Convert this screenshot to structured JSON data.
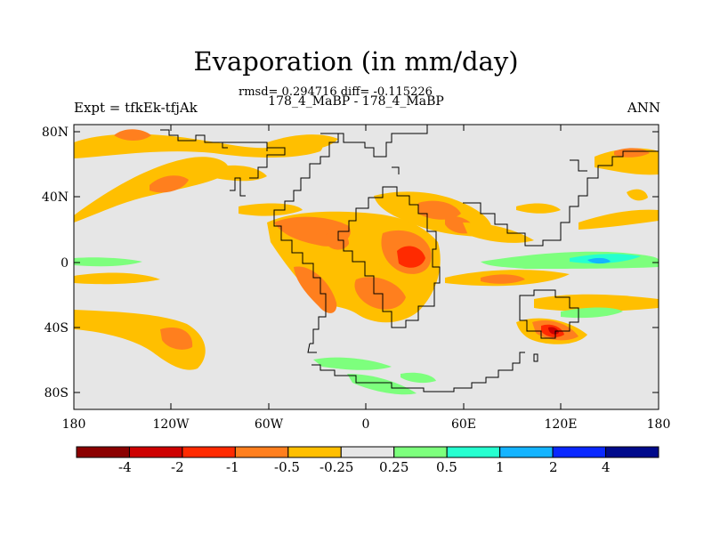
{
  "title": "Evaporation (in mm/day)",
  "stats_line": "rmsd= 0.294716 diff= -0.115226",
  "case_line": "178_4_MaBP - 178_4_MaBP",
  "left_label": "Expt = tfkEk-tfjAk",
  "right_label": "ANN",
  "lat_ticks": [
    "80N",
    "40N",
    "0",
    "40S",
    "80S"
  ],
  "lon_ticks": [
    "180",
    "120W",
    "60W",
    "0",
    "60E",
    "120E",
    "180"
  ],
  "colorbar": {
    "labels": [
      "-4",
      "-2",
      "-1",
      "-0.5",
      "-0.25",
      "0.25",
      "0.5",
      "1",
      "2",
      "4"
    ],
    "colors": [
      "#8b0000",
      "#cd0000",
      "#ff2a00",
      "#ff7f1e",
      "#ffbf00",
      "#e6e6e6",
      "#7dff7d",
      "#26ffd0",
      "#14b4ff",
      "#0a28ff",
      "#000a8b"
    ]
  },
  "colors": {
    "neutral": "#e6e6e6",
    "light_orange": "#ffbf00",
    "orange": "#ff7f1e",
    "red_orange": "#ff2a00",
    "red": "#cd0000",
    "light_green": "#7dff7d",
    "cyan": "#26ffd0",
    "blue": "#14b4ff"
  }
}
